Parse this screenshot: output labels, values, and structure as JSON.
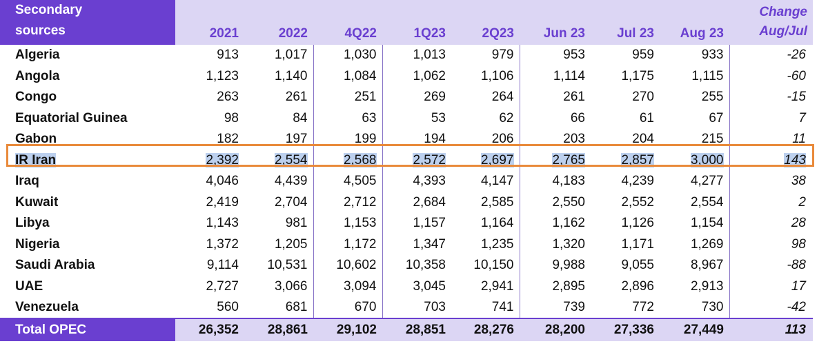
{
  "header": {
    "source_line1": "Secondary",
    "source_line2": "sources",
    "columns": [
      "2021",
      "2022",
      "4Q22",
      "1Q23",
      "2Q23",
      "Jun 23",
      "Jul 23",
      "Aug 23"
    ],
    "change_line1": "Change",
    "change_line2": "Aug/Jul"
  },
  "rows": [
    {
      "name": "Algeria",
      "values": [
        "913",
        "1,017",
        "1,030",
        "1,013",
        "979",
        "953",
        "959",
        "933"
      ],
      "change": "-26"
    },
    {
      "name": "Angola",
      "values": [
        "1,123",
        "1,140",
        "1,084",
        "1,062",
        "1,106",
        "1,114",
        "1,175",
        "1,115"
      ],
      "change": "-60"
    },
    {
      "name": "Congo",
      "values": [
        "263",
        "261",
        "251",
        "269",
        "264",
        "261",
        "270",
        "255"
      ],
      "change": "-15"
    },
    {
      "name": "Equatorial Guinea",
      "values": [
        "98",
        "84",
        "63",
        "53",
        "62",
        "66",
        "61",
        "67"
      ],
      "change": "7"
    },
    {
      "name": "Gabon",
      "values": [
        "182",
        "197",
        "199",
        "194",
        "206",
        "203",
        "204",
        "215"
      ],
      "change": "11"
    },
    {
      "name": "IR Iran",
      "values": [
        "2,392",
        "2,554",
        "2,568",
        "2,572",
        "2,697",
        "2,765",
        "2,857",
        "3,000"
      ],
      "change": "143"
    },
    {
      "name": "Iraq",
      "values": [
        "4,046",
        "4,439",
        "4,505",
        "4,393",
        "4,147",
        "4,183",
        "4,239",
        "4,277"
      ],
      "change": "38"
    },
    {
      "name": "Kuwait",
      "values": [
        "2,419",
        "2,704",
        "2,712",
        "2,684",
        "2,585",
        "2,550",
        "2,552",
        "2,554"
      ],
      "change": "2"
    },
    {
      "name": "Libya",
      "values": [
        "1,143",
        "981",
        "1,153",
        "1,157",
        "1,164",
        "1,162",
        "1,126",
        "1,154"
      ],
      "change": "28"
    },
    {
      "name": "Nigeria",
      "values": [
        "1,372",
        "1,205",
        "1,172",
        "1,347",
        "1,235",
        "1,320",
        "1,171",
        "1,269"
      ],
      "change": "98"
    },
    {
      "name": "Saudi Arabia",
      "values": [
        "9,114",
        "10,531",
        "10,602",
        "10,358",
        "10,150",
        "9,988",
        "9,055",
        "8,967"
      ],
      "change": "-88"
    },
    {
      "name": "UAE",
      "values": [
        "2,727",
        "3,066",
        "3,094",
        "3,045",
        "2,941",
        "2,895",
        "2,896",
        "2,913"
      ],
      "change": "17"
    },
    {
      "name": "Venezuela",
      "values": [
        "560",
        "681",
        "670",
        "703",
        "741",
        "739",
        "772",
        "730"
      ],
      "change": "-42"
    }
  ],
  "total": {
    "name": "Total  OPEC",
    "values": [
      "26,352",
      "28,861",
      "29,102",
      "28,851",
      "28,276",
      "28,200",
      "27,336",
      "27,449"
    ],
    "change": "113"
  },
  "highlighted_row": "IR Iran",
  "colors": {
    "header_accent": "#6a3fd0",
    "header_fill": "#dcd6f4",
    "highlight_fill": "#bcd0ee",
    "highlight_border": "#e98a3b"
  }
}
